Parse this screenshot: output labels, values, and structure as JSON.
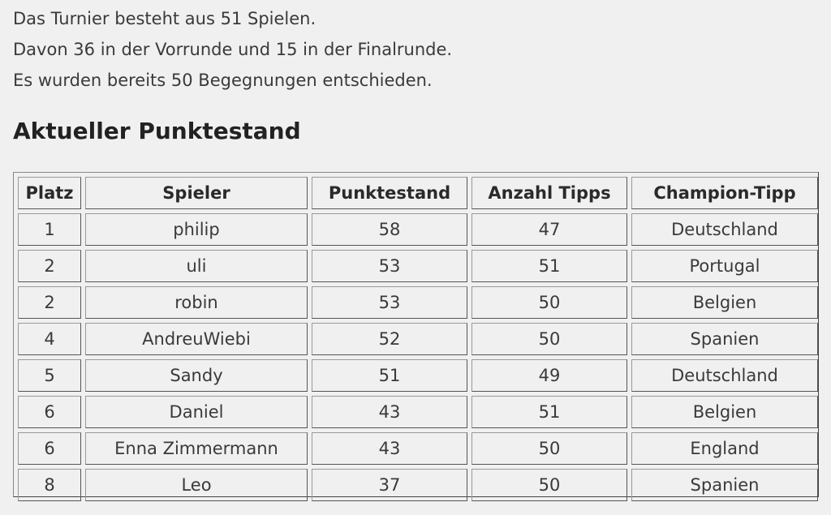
{
  "intro": {
    "line1": "Das Turnier besteht aus 51 Spielen.",
    "line2": "Davon 36 in der Vorrunde und 15 in der Finalrunde.",
    "line3": "Es wurden bereits 50 Begegnungen entschieden."
  },
  "heading": "Aktueller Punktestand",
  "table": {
    "headers": [
      "Platz",
      "Spieler",
      "Punktestand",
      "Anzahl Tipps",
      "Champion-Tipp"
    ],
    "rows": [
      [
        "1",
        "philip",
        "58",
        "47",
        "Deutschland"
      ],
      [
        "2",
        "uli",
        "53",
        "51",
        "Portugal"
      ],
      [
        "2",
        "robin",
        "53",
        "50",
        "Belgien"
      ],
      [
        "4",
        "AndreuWiebi",
        "52",
        "50",
        "Spanien"
      ],
      [
        "5",
        "Sandy",
        "51",
        "49",
        "Deutschland"
      ],
      [
        "6",
        "Daniel",
        "43",
        "51",
        "Belgien"
      ],
      [
        "6",
        "Enna Zimmermann",
        "43",
        "50",
        "England"
      ],
      [
        "8",
        "Leo",
        "37",
        "50",
        "Spanien"
      ]
    ]
  }
}
